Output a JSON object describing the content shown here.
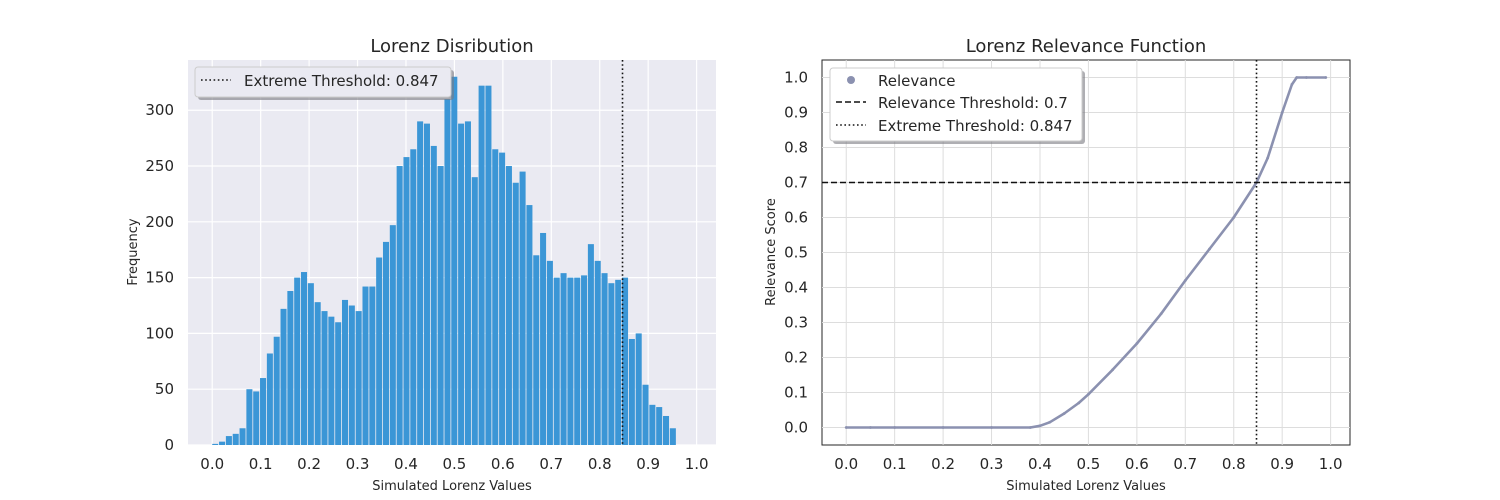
{
  "chart_data": [
    {
      "type": "bar",
      "title": "Lorenz Disribution",
      "xlabel": "Simulated Lorenz Values",
      "ylabel": "Frequency",
      "xlim": [
        -0.05,
        1.04
      ],
      "ylim": [
        0,
        345
      ],
      "xticks": [
        0.0,
        0.1,
        0.2,
        0.3,
        0.4,
        0.5,
        0.6,
        0.7,
        0.8,
        0.9,
        1.0
      ],
      "xtick_labels": [
        "0.0",
        "0.1",
        "0.2",
        "0.3",
        "0.4",
        "0.5",
        "0.6",
        "0.7",
        "0.8",
        "0.9",
        "1.0"
      ],
      "yticks": [
        0,
        50,
        100,
        150,
        200,
        250,
        300
      ],
      "ytick_labels": [
        "0",
        "50",
        "100",
        "150",
        "200",
        "250",
        "300"
      ],
      "bin_start": 0.0,
      "bin_width": 0.0141,
      "values": [
        1,
        3,
        8,
        10,
        15,
        50,
        48,
        60,
        82,
        97,
        122,
        138,
        150,
        155,
        145,
        128,
        120,
        115,
        110,
        130,
        125,
        120,
        142,
        142,
        168,
        182,
        197,
        250,
        258,
        265,
        290,
        288,
        268,
        250,
        310,
        330,
        288,
        290,
        240,
        322,
        322,
        265,
        262,
        250,
        235,
        245,
        215,
        170,
        190,
        165,
        150,
        154,
        150,
        150,
        152,
        180,
        165,
        154,
        145,
        148,
        150,
        95,
        100,
        54,
        36,
        34,
        26,
        15
      ],
      "color": "#3b96d6",
      "threshold": {
        "value": 0.847,
        "style": "dotted",
        "label": "Extreme Threshold: 0.847"
      },
      "legend_position": "upper-left"
    },
    {
      "type": "scatter",
      "title": "Lorenz Relevance Function",
      "xlabel": "Simulated Lorenz Values",
      "ylabel": "Relevance Score",
      "xlim": [
        -0.05,
        1.04
      ],
      "ylim": [
        -0.05,
        1.05
      ],
      "xticks": [
        0.0,
        0.1,
        0.2,
        0.3,
        0.4,
        0.5,
        0.6,
        0.7,
        0.8,
        0.9,
        1.0
      ],
      "xtick_labels": [
        "0.0",
        "0.1",
        "0.2",
        "0.3",
        "0.4",
        "0.5",
        "0.6",
        "0.7",
        "0.8",
        "0.9",
        "1.0"
      ],
      "yticks": [
        0.0,
        0.1,
        0.2,
        0.3,
        0.4,
        0.5,
        0.6,
        0.7,
        0.8,
        0.9,
        1.0
      ],
      "ytick_labels": [
        "0.0",
        "0.1",
        "0.2",
        "0.3",
        "0.4",
        "0.5",
        "0.6",
        "0.7",
        "0.8",
        "0.9",
        "1.0"
      ],
      "series": [
        {
          "name": "Relevance",
          "x": [
            0.0,
            0.05,
            0.1,
            0.2,
            0.3,
            0.38,
            0.4,
            0.42,
            0.45,
            0.48,
            0.5,
            0.55,
            0.6,
            0.65,
            0.7,
            0.75,
            0.8,
            0.847,
            0.87,
            0.9,
            0.92,
            0.93,
            0.95,
            0.99
          ],
          "values": [
            0.0,
            0.0,
            0.0,
            0.0,
            0.0,
            0.0,
            0.005,
            0.015,
            0.04,
            0.07,
            0.095,
            0.165,
            0.24,
            0.325,
            0.42,
            0.51,
            0.6,
            0.7,
            0.77,
            0.9,
            0.98,
            1.0,
            1.0,
            1.0
          ],
          "color": "#8b91b0"
        }
      ],
      "relevance_threshold": {
        "value": 0.7,
        "style": "dashed",
        "label": "Relevance Threshold: 0.7"
      },
      "extreme_threshold": {
        "value": 0.847,
        "style": "dotted",
        "label": "Extreme Threshold: 0.847"
      },
      "legend_position": "upper-left"
    }
  ]
}
